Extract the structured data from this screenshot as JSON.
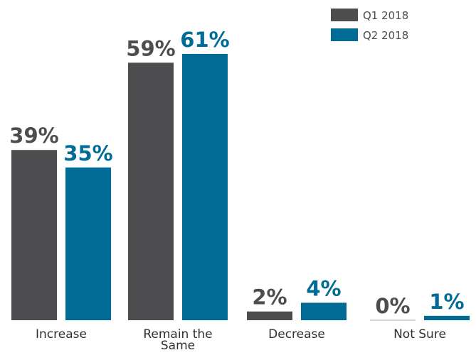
{
  "chart_data": {
    "type": "bar",
    "categories": [
      [
        "Increase"
      ],
      [
        "Remain the",
        "Same"
      ],
      [
        "Decrease"
      ],
      [
        "Not Sure"
      ]
    ],
    "series": [
      {
        "name": "Q1 2018",
        "values": [
          39,
          59,
          2,
          0
        ],
        "labels": [
          "39%",
          "59%",
          "2%",
          "0%"
        ],
        "color": "#4d4d4f",
        "label_color": "#4d4d4f"
      },
      {
        "name": "Q2 2018",
        "values": [
          35,
          61,
          4,
          1
        ],
        "labels": [
          "35%",
          "61%",
          "4%",
          "1%"
        ],
        "color": "#006c96",
        "label_color": "#006c96"
      }
    ],
    "legend_position": "top-right",
    "ylim": [
      0,
      61
    ],
    "grid": false
  }
}
